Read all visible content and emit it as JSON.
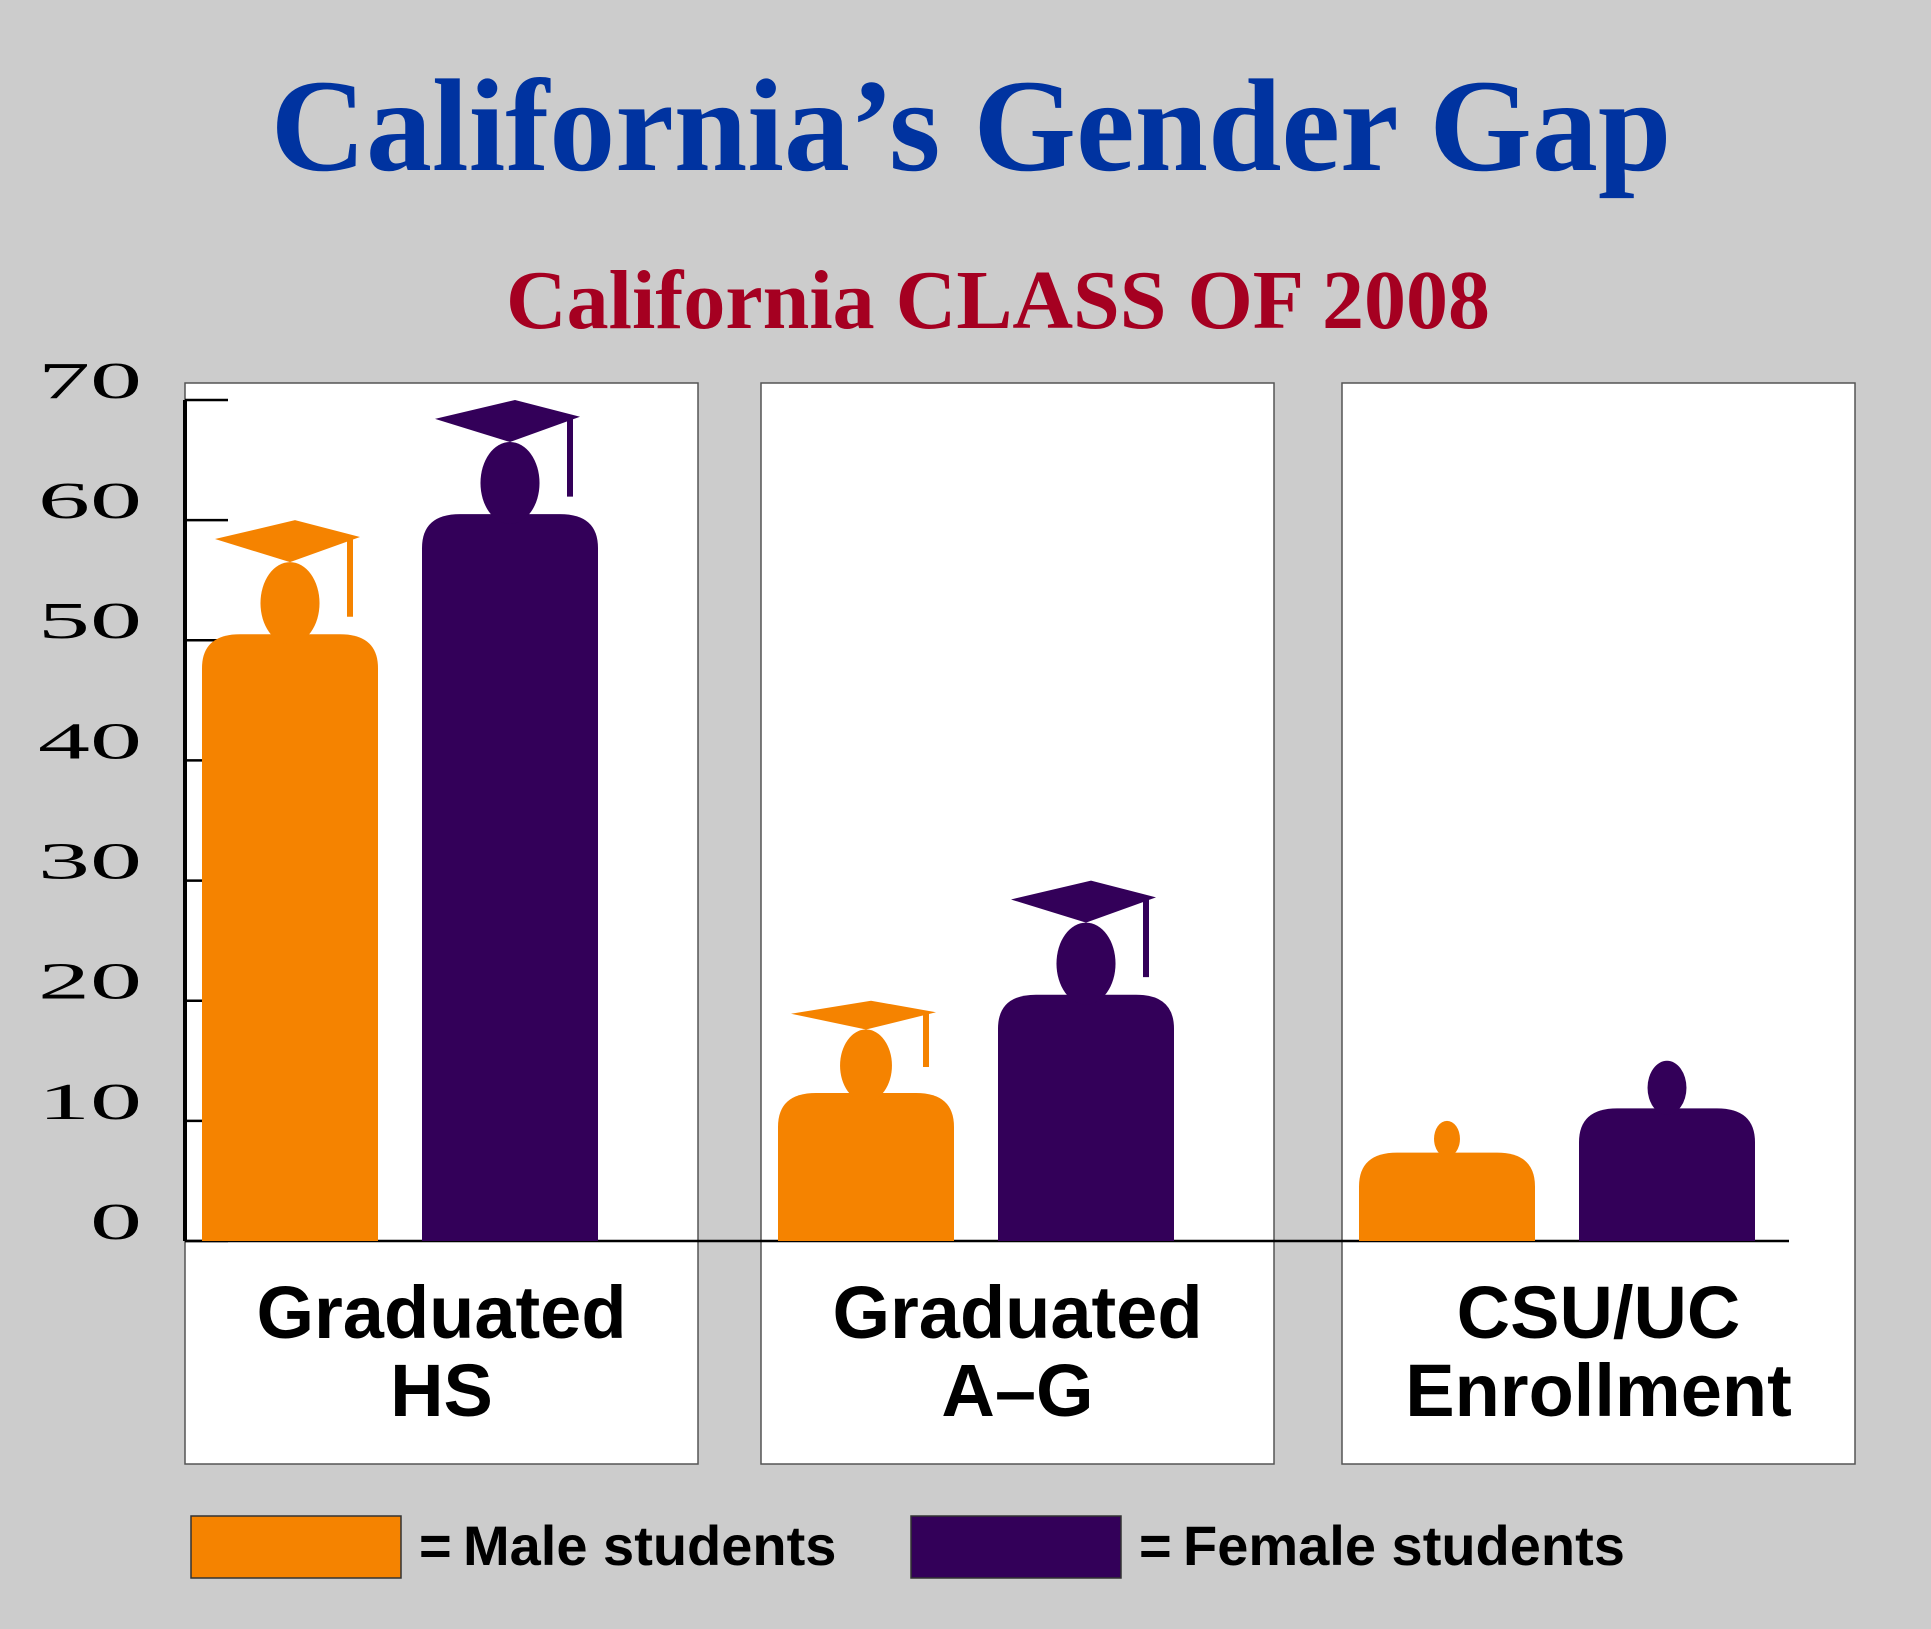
{
  "chart_data": {
    "type": "pictograph",
    "title": "California’s Gender Gap",
    "subtitle": "California CLASS OF 2008",
    "categories": [
      [
        "Graduated",
        "HS"
      ],
      [
        "Graduated",
        "A–G"
      ],
      [
        "CSU/UC",
        "Enrollment"
      ]
    ],
    "series": [
      {
        "name": "Male students",
        "color": "#f58300",
        "values": [
          60,
          20,
          10
        ]
      },
      {
        "name": "Female students",
        "color": "#330059",
        "values": [
          70,
          30,
          15
        ]
      }
    ],
    "legend_prefix": "=",
    "ylim": [
      0,
      70
    ],
    "yticks": [
      0,
      10,
      20,
      30,
      40,
      50,
      60,
      70
    ]
  }
}
